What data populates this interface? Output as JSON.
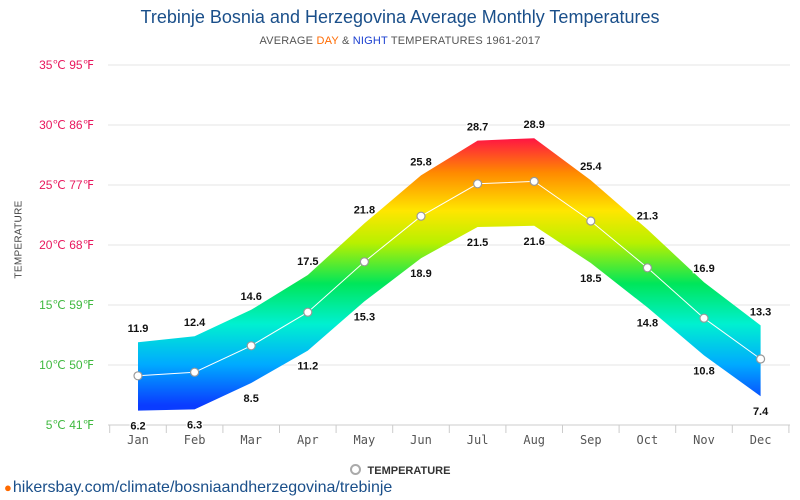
{
  "title": "Trebinje Bosnia and Herzegovina Average Monthly Temperatures",
  "subtitle": {
    "prefix": "AVERAGE ",
    "day": "DAY",
    "middle": " & ",
    "night": "NIGHT",
    "suffix": " TEMPERATURES 1961-2017"
  },
  "source": "hikersbay.com/climate/bosniaandherzegovina/trebinje",
  "chart_data": {
    "type": "area",
    "ylabel": "TEMPERATURE",
    "ylim": [
      5,
      35
    ],
    "y_ticks": [
      {
        "c": 35,
        "label": "35℃ 95℉",
        "color": "#e8175d"
      },
      {
        "c": 30,
        "label": "30℃ 86℉",
        "color": "#e8175d"
      },
      {
        "c": 25,
        "label": "25℃ 77℉",
        "color": "#e8175d"
      },
      {
        "c": 20,
        "label": "20℃ 68℉",
        "color": "#e8175d"
      },
      {
        "c": 15,
        "label": "15℃ 59℉",
        "color": "#3fb83f"
      },
      {
        "c": 10,
        "label": "10℃ 50℉",
        "color": "#3fb83f"
      },
      {
        "c": 5,
        "label": "5℃ 41℉",
        "color": "#3fb83f"
      }
    ],
    "categories": [
      "Jan",
      "Feb",
      "Mar",
      "Apr",
      "May",
      "Jun",
      "Jul",
      "Aug",
      "Sep",
      "Oct",
      "Nov",
      "Dec"
    ],
    "series": [
      {
        "name": "DAY",
        "values": [
          11.9,
          12.4,
          14.6,
          17.5,
          21.8,
          25.8,
          28.7,
          28.9,
          25.4,
          21.3,
          16.9,
          13.3
        ]
      },
      {
        "name": "NIGHT",
        "values": [
          6.2,
          6.3,
          8.5,
          11.2,
          15.3,
          18.9,
          21.5,
          21.6,
          18.5,
          14.8,
          10.8,
          7.4
        ]
      },
      {
        "name": "TEMPERATURE",
        "values": [
          9.1,
          9.4,
          11.6,
          14.4,
          18.6,
          22.4,
          25.1,
          25.3,
          22.0,
          18.1,
          13.9,
          10.5
        ]
      }
    ],
    "legend": "TEMPERATURE",
    "legend_position": "bottom",
    "grid": true
  }
}
